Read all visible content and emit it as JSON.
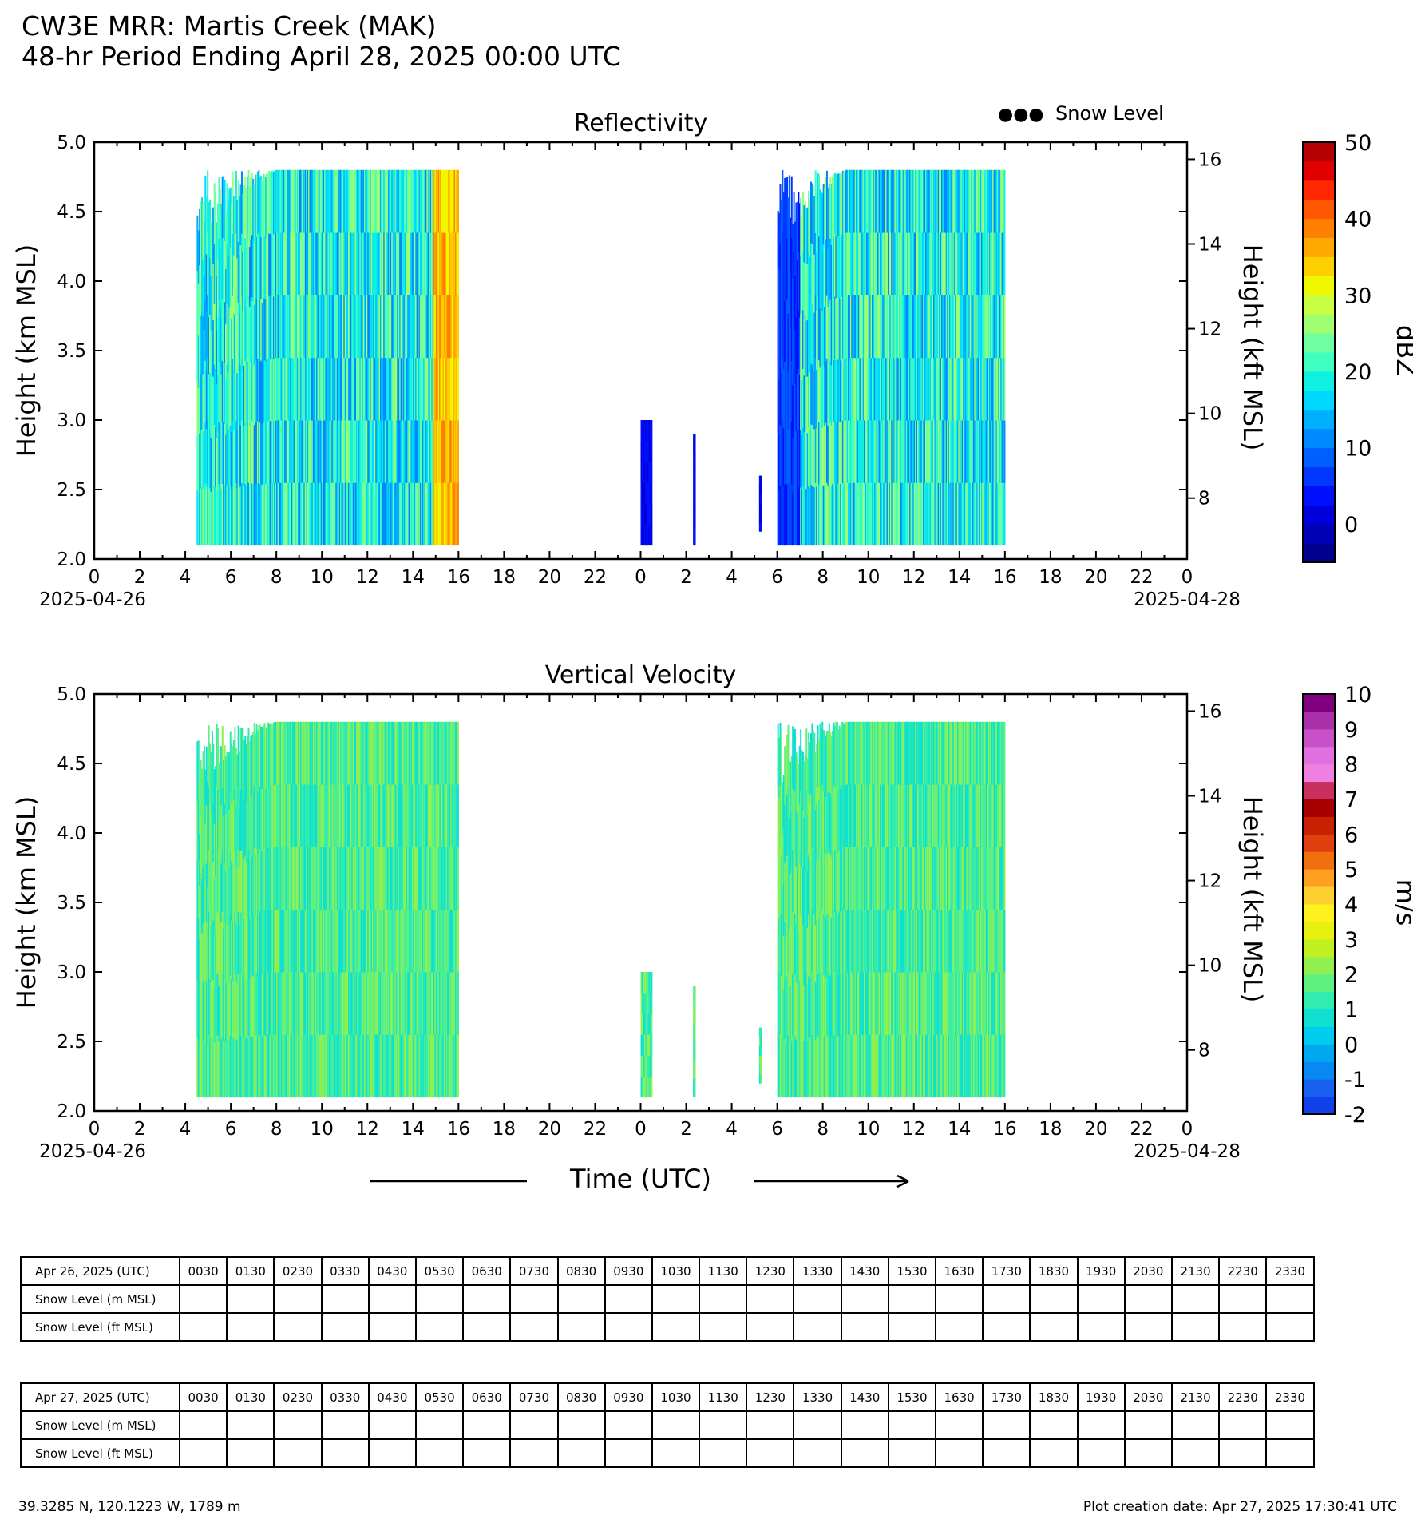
{
  "header": {
    "title": "CW3E MRR: Martis Creek (MAK)",
    "subtitle": "48-hr Period Ending April 28, 2025 00:00 UTC"
  },
  "legend": {
    "symbol": "●●●",
    "label": "Snow Level"
  },
  "chart_data": [
    {
      "type": "heatmap",
      "title": "Reflectivity",
      "ylabel": "Height (km MSL)",
      "y2label": "Height (kft MSL)",
      "ylim": [
        2.0,
        5.0
      ],
      "yticks": [
        "2.0",
        "2.5",
        "3.0",
        "3.5",
        "4.0",
        "4.5",
        "5.0"
      ],
      "y2ticks": [
        8,
        10,
        12,
        14,
        16
      ],
      "xlim_hours": [
        0,
        48
      ],
      "xticks": [
        "0",
        "2",
        "4",
        "6",
        "8",
        "10",
        "12",
        "14",
        "16",
        "18",
        "20",
        "22",
        "0",
        "2",
        "4",
        "6",
        "8",
        "10",
        "12",
        "14",
        "16",
        "18",
        "20",
        "22",
        "0"
      ],
      "xdate_start": "2025-04-26",
      "xdate_end": "2025-04-28",
      "colorbar": {
        "label": "dBZ",
        "min": -5,
        "max": 50,
        "step": 2.5,
        "ticks": [
          0,
          10,
          20,
          30,
          40,
          50
        ],
        "colors": [
          "#00008f",
          "#0000b4",
          "#0000dc",
          "#0010ff",
          "#0038ff",
          "#0060ff",
          "#0088ff",
          "#00b0ff",
          "#00d8ff",
          "#10f0e0",
          "#40ffc0",
          "#70ffa0",
          "#a0ff70",
          "#c8ff40",
          "#f0f800",
          "#ffd000",
          "#ffa800",
          "#ff8000",
          "#ff5800",
          "#ff2800",
          "#e00000",
          "#b40000"
        ]
      },
      "data_regions_hours": [
        {
          "start": 4.5,
          "end": 16.0,
          "top_km": 4.8,
          "bottom_km": 2.1,
          "note": "precipitation echoes 0-30 dBZ, core up to ~37 dBZ near 15-16 h"
        },
        {
          "start": 24.0,
          "end": 24.5,
          "top_km": 3.0,
          "bottom_km": 2.1
        },
        {
          "start": 26.3,
          "end": 26.4,
          "top_km": 2.9,
          "bottom_km": 2.1
        },
        {
          "start": 29.2,
          "end": 29.3,
          "top_km": 2.6,
          "bottom_km": 2.2
        },
        {
          "start": 30.0,
          "end": 40.0,
          "top_km": 4.8,
          "bottom_km": 2.1,
          "note": "echoes 0-30 dBZ"
        }
      ]
    },
    {
      "type": "heatmap",
      "title": "Vertical Velocity",
      "ylabel": "Height (km MSL)",
      "y2label": "Height (kft MSL)",
      "xlabel": "Time (UTC)",
      "ylim": [
        2.0,
        5.0
      ],
      "yticks": [
        "2.0",
        "2.5",
        "3.0",
        "3.5",
        "4.0",
        "4.5",
        "5.0"
      ],
      "y2ticks": [
        8,
        10,
        12,
        14,
        16
      ],
      "xlim_hours": [
        0,
        48
      ],
      "xticks": [
        "0",
        "2",
        "4",
        "6",
        "8",
        "10",
        "12",
        "14",
        "16",
        "18",
        "20",
        "22",
        "0",
        "2",
        "4",
        "6",
        "8",
        "10",
        "12",
        "14",
        "16",
        "18",
        "20",
        "22",
        "0"
      ],
      "xdate_start": "2025-04-26",
      "xdate_end": "2025-04-28",
      "colorbar": {
        "label": "m/s",
        "min": -2,
        "max": 10,
        "step": 0.5,
        "ticks": [
          "-2",
          "-1",
          "0",
          "1",
          "2",
          "3",
          "4",
          "5",
          "6",
          "7",
          "8",
          "9",
          "10"
        ],
        "colors": [
          "#1040e8",
          "#1860f0",
          "#0888f0",
          "#00a8f0",
          "#00ccf0",
          "#10e0d0",
          "#30ecb0",
          "#60f080",
          "#90f050",
          "#c0f020",
          "#e8f010",
          "#fff020",
          "#ffd030",
          "#ffa020",
          "#f07010",
          "#e04010",
          "#c82000",
          "#a80000",
          "#c83060",
          "#f080e0",
          "#e070e0",
          "#c850c8",
          "#a830a8",
          "#800080"
        ]
      },
      "data_regions_hours": [
        {
          "start": 4.5,
          "end": 16.0,
          "top_km": 4.8,
          "bottom_km": 2.1,
          "note": "mostly 0-2 m/s"
        },
        {
          "start": 24.0,
          "end": 24.5,
          "top_km": 3.0,
          "bottom_km": 2.1
        },
        {
          "start": 26.3,
          "end": 26.4,
          "top_km": 2.9,
          "bottom_km": 2.1
        },
        {
          "start": 29.2,
          "end": 29.3,
          "top_km": 2.6,
          "bottom_km": 2.2
        },
        {
          "start": 30.0,
          "end": 40.0,
          "top_km": 4.8,
          "bottom_km": 2.1,
          "note": "mostly 0-2 m/s"
        }
      ]
    }
  ],
  "snow_tables": [
    {
      "header": "Apr 26, 2025 (UTC)",
      "times": [
        "0030",
        "0130",
        "0230",
        "0330",
        "0430",
        "0530",
        "0630",
        "0730",
        "0830",
        "0930",
        "1030",
        "1130",
        "1230",
        "1330",
        "1430",
        "1530",
        "1630",
        "1730",
        "1830",
        "1930",
        "2030",
        "2130",
        "2230",
        "2330"
      ],
      "rows": [
        "Snow Level (m MSL)",
        "Snow Level (ft MSL)"
      ]
    },
    {
      "header": "Apr 27, 2025 (UTC)",
      "times": [
        "0030",
        "0130",
        "0230",
        "0330",
        "0430",
        "0530",
        "0630",
        "0730",
        "0830",
        "0930",
        "1030",
        "1130",
        "1230",
        "1330",
        "1430",
        "1530",
        "1630",
        "1730",
        "1830",
        "1930",
        "2030",
        "2130",
        "2230",
        "2330"
      ],
      "rows": [
        "Snow Level (m MSL)",
        "Snow Level (ft MSL)"
      ]
    }
  ],
  "footer": {
    "location": "39.3285 N, 120.1223 W, 1789 m",
    "created": "Plot creation date: Apr 27, 2025 17:30:41 UTC"
  }
}
